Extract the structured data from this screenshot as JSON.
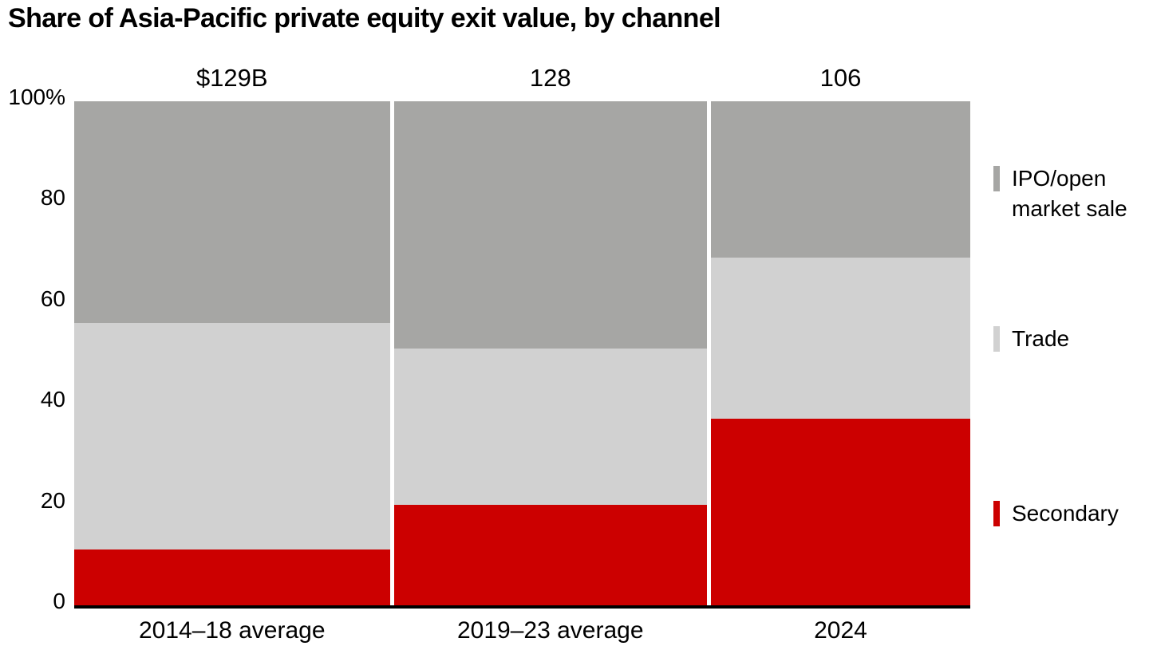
{
  "title": "Share of Asia-Pacific private equity exit value, by channel",
  "colors": {
    "secondary": "#cc0000",
    "trade": "#d1d1d1",
    "ipo": "#a6a6a4",
    "axis": "#000000",
    "background": "#ffffff",
    "text": "#000000"
  },
  "y_axis": {
    "ticks": [
      {
        "label": "100%",
        "value": 100
      },
      {
        "label": "80",
        "value": 80
      },
      {
        "label": "60",
        "value": 60
      },
      {
        "label": "40",
        "value": 40
      },
      {
        "label": "20",
        "value": 20
      },
      {
        "label": "0",
        "value": 0
      }
    ]
  },
  "legend": {
    "ipo": {
      "label": "IPO/open market sale",
      "color": "#a6a6a4"
    },
    "trade": {
      "label": "Trade",
      "color": "#d1d1d1"
    },
    "secondary": {
      "label": "Secondary",
      "color": "#cc0000"
    }
  },
  "chart_data": {
    "type": "bar",
    "subtype": "100%-stacked-columns-variable-width",
    "title": "Share of Asia-Pacific private equity exit value, by channel",
    "categories": [
      "2014–18 average",
      "2019–23 average",
      "2024"
    ],
    "totals": [
      "$129B",
      "128",
      "106"
    ],
    "total_values": [
      129,
      128,
      106
    ],
    "total_units": "US$ billions",
    "series": [
      {
        "name": "Secondary",
        "color": "#cc0000",
        "values": [
          11,
          20,
          37
        ]
      },
      {
        "name": "Trade",
        "color": "#d1d1d1",
        "values": [
          45,
          31,
          32
        ]
      },
      {
        "name": "IPO/open market sale",
        "color": "#a6a6a4",
        "values": [
          44,
          49,
          31
        ]
      }
    ],
    "stack_order_bottom_to_top": [
      "Secondary",
      "Trade",
      "IPO/open market sale"
    ],
    "xlabel": "",
    "ylabel": "",
    "ylim": [
      0,
      100
    ],
    "y_ticks": [
      0,
      20,
      40,
      60,
      80,
      100
    ],
    "grid": false,
    "bar_width_proportional_to": "total exit value",
    "legend_position": "right"
  }
}
